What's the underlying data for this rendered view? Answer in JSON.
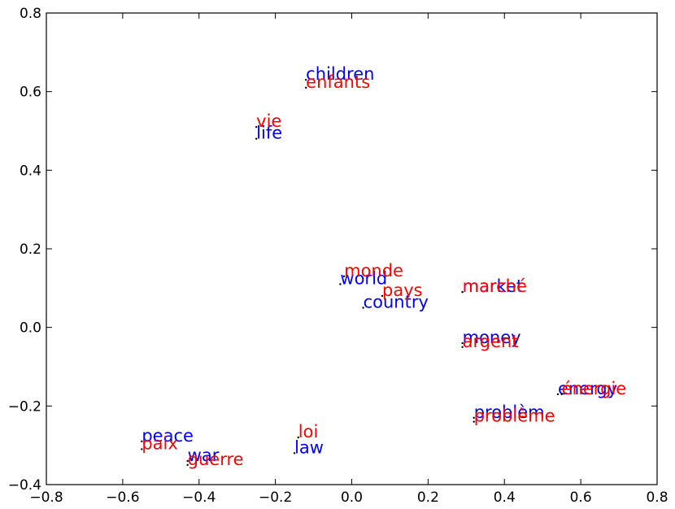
{
  "chart_data": {
    "type": "scatter",
    "xlim": [
      -0.8,
      0.8
    ],
    "ylim": [
      -0.4,
      0.8
    ],
    "xticks": [
      {
        "value": -0.8,
        "label": "−0.8"
      },
      {
        "value": -0.6,
        "label": "−0.6"
      },
      {
        "value": -0.4,
        "label": "−0.4"
      },
      {
        "value": -0.2,
        "label": "−0.2"
      },
      {
        "value": 0.0,
        "label": "0.0"
      },
      {
        "value": 0.2,
        "label": "0.2"
      },
      {
        "value": 0.4,
        "label": "0.4"
      },
      {
        "value": 0.6,
        "label": "0.6"
      },
      {
        "value": 0.8,
        "label": "0.8"
      }
    ],
    "yticks": [
      {
        "value": -0.4,
        "label": "−0.4"
      },
      {
        "value": -0.2,
        "label": "−0.2"
      },
      {
        "value": 0.0,
        "label": "0.0"
      },
      {
        "value": 0.2,
        "label": "0.2"
      },
      {
        "value": 0.4,
        "label": "0.4"
      },
      {
        "value": 0.6,
        "label": "0.6"
      },
      {
        "value": 0.8,
        "label": "0.8"
      }
    ],
    "grid": false,
    "series": [
      {
        "color": "#0000ff",
        "labels": [
          "children",
          "life",
          "world",
          "country",
          "market",
          "money",
          "energy",
          "problèm",
          "law",
          "peace",
          "war"
        ],
        "x": [
          -0.12,
          -0.25,
          -0.03,
          0.03,
          0.29,
          0.29,
          0.54,
          0.32,
          -0.15,
          -0.55,
          -0.43
        ],
        "values": [
          0.63,
          0.48,
          0.11,
          0.05,
          0.09,
          -0.04,
          -0.17,
          -0.23,
          -0.32,
          -0.29,
          -0.34
        ]
      },
      {
        "color": "#ff0000",
        "labels": [
          "enfants",
          "vie",
          "monde",
          "pays",
          "marché",
          "argent",
          "énergie",
          "problème",
          "loi",
          "paix",
          "guerre"
        ],
        "x": [
          -0.12,
          -0.25,
          -0.02,
          0.08,
          0.29,
          0.29,
          0.55,
          0.32,
          -0.14,
          -0.55,
          -0.43
        ],
        "values": [
          0.61,
          0.51,
          0.13,
          0.08,
          0.09,
          -0.05,
          -0.17,
          -0.24,
          -0.28,
          -0.31,
          -0.35
        ]
      }
    ]
  }
}
